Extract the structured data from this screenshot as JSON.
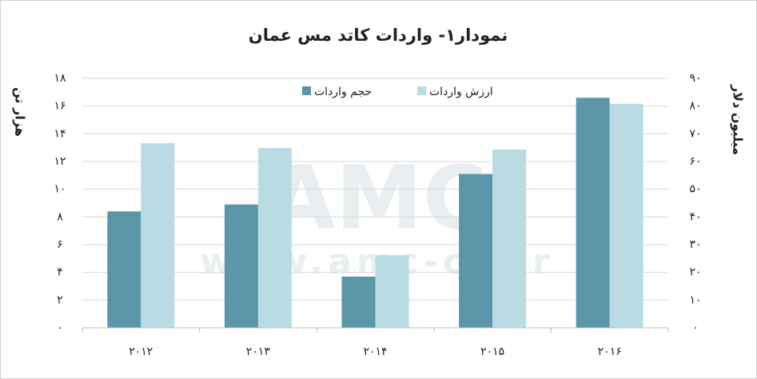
{
  "chart_data": {
    "type": "bar",
    "title": "نمودار۱- واردات کاتد مس عمان",
    "y_label": "هزار تن",
    "y2_label": "میلیون دلار",
    "watermark": [
      "AMC",
      "www.amc-co.ir"
    ],
    "categories": [
      "۲۰۱۲",
      "۲۰۱۳",
      "۲۰۱۴",
      "۲۰۱۵",
      "۲۰۱۶"
    ],
    "series": [
      {
        "name": "حجم واردات",
        "color": "#5b97a8",
        "values": [
          8.4,
          8.9,
          3.7,
          11.1,
          16.6
        ]
      },
      {
        "name": "ارزش واردات",
        "color": "#b9dbe3",
        "axis": "y2",
        "values": [
          66.6,
          64.9,
          26.2,
          64.3,
          80.8
        ]
      }
    ],
    "ylim": [
      0,
      18
    ],
    "yticks": [
      {
        "value": 0,
        "label": "۰"
      },
      {
        "value": 2,
        "label": "۲"
      },
      {
        "value": 4,
        "label": "۴"
      },
      {
        "value": 6,
        "label": "۶"
      },
      {
        "value": 8,
        "label": "۸"
      },
      {
        "value": 10,
        "label": "۱۰"
      },
      {
        "value": 12,
        "label": "۱۲"
      },
      {
        "value": 14,
        "label": "۱۴"
      },
      {
        "value": 16,
        "label": "۱۶"
      },
      {
        "value": 18,
        "label": "۱۸"
      }
    ],
    "y2lim": [
      0,
      90
    ],
    "y2ticks": [
      {
        "value": 0,
        "label": "۰"
      },
      {
        "value": 10,
        "label": "۱۰"
      },
      {
        "value": 20,
        "label": "۲۰"
      },
      {
        "value": 30,
        "label": "۳۰"
      },
      {
        "value": 40,
        "label": "۴۰"
      },
      {
        "value": 50,
        "label": "۵۰"
      },
      {
        "value": 60,
        "label": "۶۰"
      },
      {
        "value": 70,
        "label": "۷۰"
      },
      {
        "value": 80,
        "label": "۸۰"
      },
      {
        "value": 90,
        "label": "۹۰"
      }
    ],
    "grid": true,
    "legend": "top"
  }
}
